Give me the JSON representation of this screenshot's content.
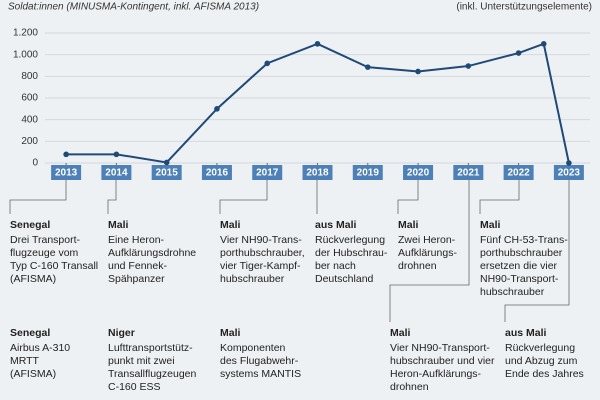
{
  "chart_data": {
    "type": "line",
    "subtitle": "Soldat:innen (MINUSMA-Kontingent, inkl. AFISMA 2013)",
    "note": "(inkl. Unterstützungselemente)",
    "x": [
      2013,
      2014,
      2015,
      2016,
      2017,
      2018,
      2019,
      2020,
      2021,
      2022,
      2022.5,
      2023
    ],
    "values": [
      80,
      80,
      5,
      500,
      920,
      1100,
      885,
      845,
      895,
      1015,
      1100,
      0
    ],
    "color": "#1f4a78",
    "xlim": [
      2012.58,
      2023.42
    ],
    "xticks": [
      2013,
      2014,
      2015,
      2016,
      2017,
      2018,
      2019,
      2020,
      2021,
      2022,
      2023
    ],
    "ylim": [
      0,
      1200
    ],
    "yticks": [
      0,
      200,
      400,
      600,
      800,
      {
        "value": 1000,
        "label": "1.000"
      },
      {
        "value": 1200,
        "label": "1.200"
      }
    ],
    "grid": true,
    "annotations": [
      {
        "title": "Senegal",
        "lines": [
          "Drei Transport-",
          "flugzeuge vom",
          "Typ C-160 Transall",
          "(AFISMA)"
        ]
      },
      {
        "title": "Mali",
        "lines": [
          "Eine Heron-",
          "Aufklärungsdrohne",
          "und Fennek-",
          "Spähpanzer"
        ]
      },
      {
        "title": "Mali",
        "lines": [
          "Vier NH90-Trans-",
          "porthubschrauber,",
          "vier Tiger-Kampf-",
          "hubschrauber"
        ]
      },
      {
        "title": "aus Mali",
        "lines": [
          "Rückverlegung",
          "der Hubschrau-",
          "ber nach",
          "Deutschland"
        ]
      },
      {
        "title": "Mali",
        "lines": [
          "Zwei Heron-",
          "Aufklärungs-",
          "drohnen"
        ]
      },
      {
        "title": "Mali",
        "lines": [
          "Fünf CH-53-Trans-",
          "porthubschrauber",
          "ersetzen die vier",
          "NH90-Transport-",
          "hubschrauber"
        ]
      },
      {
        "title": "Senegal",
        "lines": [
          "Airbus A-310",
          "MRTT",
          "(AFISMA)"
        ]
      },
      {
        "title": "Niger",
        "lines": [
          "Lufttransportstütz-",
          "punkt mit zwei",
          "Transallflugzeugen",
          "C-160 ESS"
        ]
      },
      {
        "title": "Mali",
        "lines": [
          "Komponenten",
          "des Flugabwehr-",
          "systems MANTIS"
        ]
      },
      {
        "title": "Mali",
        "lines": [
          "Vier NH90-Transport-",
          "hubschrauber und vier",
          "Heron-Aufklärungs-",
          "drohnen"
        ]
      },
      {
        "title": "aus Mali",
        "lines": [
          "Rückverlegung",
          "und Abzug zum",
          "Ende des Jahres"
        ]
      }
    ]
  }
}
